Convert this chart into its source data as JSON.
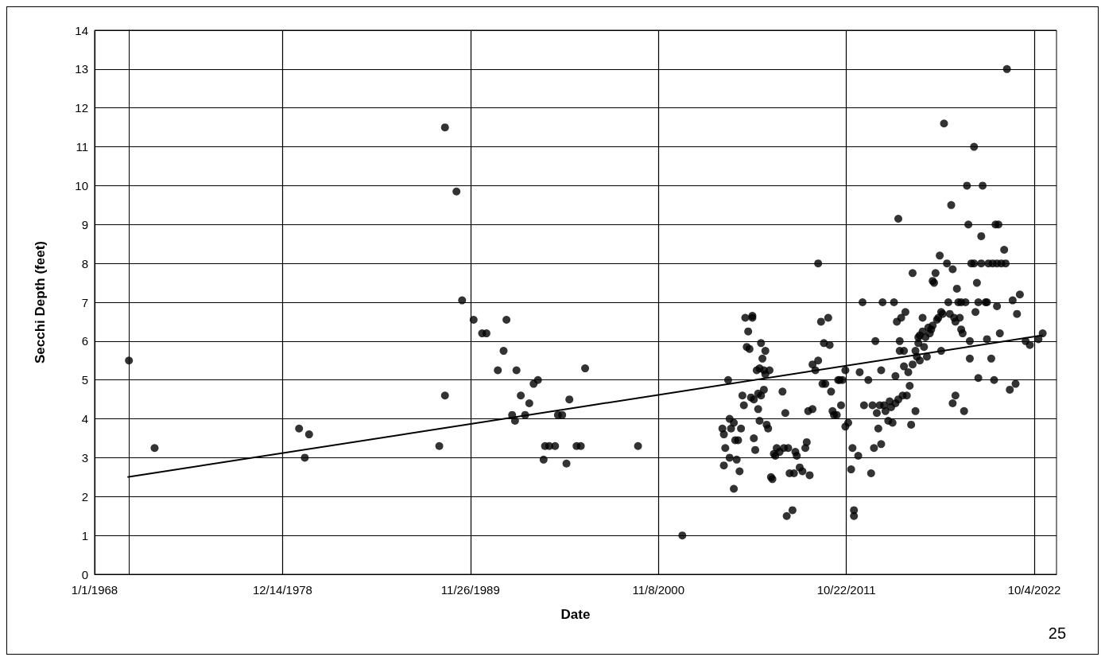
{
  "chart_data": {
    "type": "scatter",
    "xlabel": "Date",
    "ylabel": "Secchi Depth (feet)",
    "annotations": [
      "25"
    ],
    "xlim": [
      "1968-01-01",
      "2024-01-20"
    ],
    "xticks": [
      {
        "value": "1968-01-01",
        "label": "1/1/1968"
      },
      {
        "value": "1978-12-14",
        "label": "12/14/1978"
      },
      {
        "value": "1989-11-26",
        "label": "11/26/1989"
      },
      {
        "value": "2000-11-08",
        "label": "11/8/2000"
      },
      {
        "value": "2011-10-22",
        "label": "10/22/2011"
      },
      {
        "value": "2022-10-04",
        "label": "10/4/2022"
      }
    ],
    "ylim": [
      0,
      14
    ],
    "yticks": [
      0,
      1,
      2,
      3,
      4,
      5,
      6,
      7,
      8,
      9,
      10,
      11,
      12,
      13,
      14
    ],
    "grid": true,
    "marker": "circle",
    "series": [
      {
        "color": "#000000",
        "x": [
          "1970-01",
          "1971-07",
          "1979-12",
          "1980-04",
          "1980-07",
          "1988-02",
          "1988-06",
          "1988-06",
          "1989-02",
          "1989-06",
          "1990-02",
          "1990-08",
          "1990-11",
          "1991-07",
          "1991-11",
          "1992-01",
          "1992-05",
          "1992-07",
          "1992-08",
          "1992-11",
          "1993-02",
          "1993-05",
          "1993-08",
          "1993-11",
          "1994-03",
          "1994-04",
          "1994-07",
          "1994-11",
          "1995-01",
          "1995-04",
          "1995-07",
          "1995-09",
          "1996-02",
          "1996-05",
          "1996-08",
          "1999-09",
          "2002-04",
          "2004-08",
          "2004-09",
          "2004-09",
          "2004-10",
          "2004-12",
          "2005-01",
          "2005-01",
          "2005-02",
          "2005-04",
          "2005-04",
          "2005-05",
          "2005-06",
          "2005-07",
          "2005-08",
          "2005-09",
          "2005-10",
          "2005-11",
          "2005-12",
          "2006-01",
          "2006-02",
          "2006-03",
          "2006-04",
          "2006-05",
          "2006-05",
          "2006-06",
          "2006-06",
          "2006-07",
          "2006-08",
          "2006-09",
          "2006-09",
          "2006-10",
          "2006-10",
          "2006-11",
          "2006-11",
          "2006-12",
          "2007-01",
          "2007-01",
          "2007-02",
          "2007-02",
          "2007-03",
          "2007-04",
          "2007-05",
          "2007-06",
          "2007-07",
          "2007-08",
          "2007-09",
          "2007-10",
          "2007-12",
          "2008-02",
          "2008-03",
          "2008-04",
          "2008-05",
          "2008-06",
          "2008-07",
          "2008-09",
          "2008-10",
          "2008-11",
          "2008-12",
          "2009-02",
          "2009-04",
          "2009-06",
          "2009-07",
          "2009-08",
          "2009-09",
          "2009-11",
          "2009-11",
          "2010-01",
          "2010-03",
          "2010-03",
          "2010-05",
          "2010-06",
          "2010-07",
          "2010-08",
          "2010-10",
          "2010-11",
          "2010-12",
          "2011-01",
          "2011-02",
          "2011-04",
          "2011-05",
          "2011-06",
          "2011-07",
          "2011-08",
          "2011-10",
          "2011-10",
          "2011-12",
          "2012-02",
          "2012-03",
          "2012-04",
          "2012-04",
          "2012-07",
          "2012-08",
          "2012-10",
          "2012-11",
          "2013-02",
          "2013-04",
          "2013-05",
          "2013-06",
          "2013-07",
          "2013-08",
          "2013-09",
          "2013-10",
          "2013-11",
          "2013-11",
          "2013-12",
          "2014-01",
          "2014-02",
          "2014-04",
          "2014-05",
          "2014-06",
          "2014-07",
          "2014-08",
          "2014-09",
          "2014-09",
          "2014-10",
          "2014-11",
          "2014-11",
          "2014-12",
          "2014-12",
          "2015-01",
          "2015-02",
          "2015-03",
          "2015-03",
          "2015-04",
          "2015-05",
          "2015-06",
          "2015-07",
          "2015-08",
          "2015-09",
          "2015-09",
          "2015-11",
          "2015-11",
          "2015-12",
          "2016-01",
          "2016-01",
          "2016-02",
          "2016-02",
          "2016-04",
          "2016-04",
          "2016-05",
          "2016-06",
          "2016-07",
          "2016-08",
          "2016-09",
          "2016-10",
          "2016-11",
          "2016-11",
          "2016-12",
          "2017-01",
          "2017-02",
          "2017-03",
          "2017-04",
          "2017-05",
          "2017-05",
          "2017-06",
          "2017-07",
          "2017-09",
          "2017-10",
          "2017-11",
          "2017-12",
          "2018-01",
          "2018-01",
          "2018-02",
          "2018-03",
          "2018-03",
          "2018-04",
          "2018-05",
          "2018-06",
          "2018-07",
          "2018-07",
          "2018-08",
          "2018-09",
          "2018-10",
          "2018-11",
          "2018-12",
          "2019-01",
          "2019-01",
          "2019-02",
          "2019-04",
          "2019-04",
          "2019-05",
          "2019-06",
          "2019-07",
          "2019-07",
          "2019-09",
          "2019-09",
          "2019-10",
          "2019-12",
          "2020-01",
          "2020-01",
          "2020-02",
          "2020-04",
          "2020-05",
          "2020-06",
          "2020-07",
          "2020-08",
          "2020-08",
          "2020-09",
          "2020-10",
          "2020-11",
          "2021-01",
          "2021-02",
          "2021-03",
          "2021-05",
          "2021-07",
          "2021-09",
          "2021-10",
          "2021-12",
          "2022-04",
          "2022-07",
          "2023-01",
          "2023-04"
        ],
        "values": [
          5.5,
          3.25,
          3.75,
          3.0,
          3.6,
          3.3,
          11.5,
          4.6,
          9.85,
          7.05,
          6.55,
          6.2,
          6.2,
          5.25,
          5.75,
          6.55,
          4.1,
          3.95,
          5.25,
          4.6,
          4.1,
          4.4,
          4.9,
          5.0,
          2.95,
          3.3,
          3.3,
          3.3,
          4.1,
          4.1,
          2.85,
          4.5,
          3.3,
          3.3,
          5.3,
          3.3,
          1.0,
          3.75,
          2.8,
          3.6,
          3.25,
          5.0,
          4.0,
          3.0,
          3.75,
          3.9,
          2.2,
          3.45,
          2.95,
          3.45,
          2.65,
          3.75,
          4.6,
          4.35,
          6.6,
          5.85,
          6.25,
          5.8,
          4.55,
          6.6,
          6.65,
          4.5,
          3.5,
          3.2,
          5.25,
          4.65,
          4.25,
          3.95,
          5.3,
          5.95,
          4.6,
          5.55,
          5.25,
          4.75,
          5.15,
          5.75,
          3.85,
          3.75,
          5.25,
          2.5,
          2.45,
          3.1,
          3.05,
          3.25,
          3.15,
          4.7,
          3.25,
          4.15,
          1.5,
          3.25,
          2.6,
          1.65,
          2.6,
          3.15,
          3.05,
          2.75,
          2.65,
          3.25,
          3.4,
          4.2,
          2.55,
          4.25,
          5.4,
          5.25,
          5.5,
          8.0,
          6.5,
          4.9,
          5.95,
          4.9,
          6.6,
          5.9,
          4.7,
          4.2,
          4.1,
          4.1,
          5.0,
          5.0,
          4.35,
          5.0,
          3.8,
          5.25,
          3.9,
          2.7,
          3.25,
          1.65,
          1.5,
          3.05,
          5.2,
          7.0,
          4.35,
          5.0,
          2.6,
          4.35,
          3.25,
          6.0,
          4.15,
          3.75,
          4.35,
          5.25,
          3.35,
          7.0,
          4.35,
          4.2,
          3.95,
          4.45,
          4.3,
          3.9,
          7.0,
          4.4,
          5.1,
          6.5,
          4.5,
          9.15,
          6.0,
          5.75,
          6.6,
          4.6,
          5.35,
          5.75,
          6.75,
          4.6,
          5.2,
          4.85,
          3.85,
          7.75,
          5.4,
          4.2,
          5.75,
          5.6,
          5.95,
          6.1,
          6.15,
          5.5,
          6.6,
          6.25,
          5.85,
          6.1,
          5.6,
          6.35,
          6.2,
          6.3,
          6.4,
          7.55,
          7.5,
          7.75,
          6.55,
          6.6,
          8.2,
          5.75,
          6.75,
          6.7,
          11.6,
          8.0,
          7.0,
          6.7,
          9.5,
          4.4,
          7.85,
          6.6,
          4.6,
          6.5,
          7.35,
          7.0,
          6.6,
          6.3,
          7.0,
          6.2,
          4.2,
          7.0,
          10.0,
          9.0,
          6.0,
          5.55,
          8.0,
          11.0,
          8.0,
          6.75,
          7.5,
          5.05,
          7.0,
          8.7,
          8.0,
          10.0,
          7.0,
          7.0,
          6.05,
          8.0,
          5.55,
          8.0,
          5.0,
          9.0,
          6.9,
          8.0,
          9.0,
          6.2,
          8.0,
          8.35,
          8.0,
          13.0,
          4.75,
          7.05,
          4.9,
          6.7,
          7.2,
          6.0,
          5.9,
          6.05,
          6.2
        ]
      },
      {
        "type": "line",
        "marker": "none",
        "color": "#000000",
        "x": [
          "1969-12",
          "2023-04"
        ],
        "values": [
          2.5,
          6.15
        ]
      }
    ]
  }
}
